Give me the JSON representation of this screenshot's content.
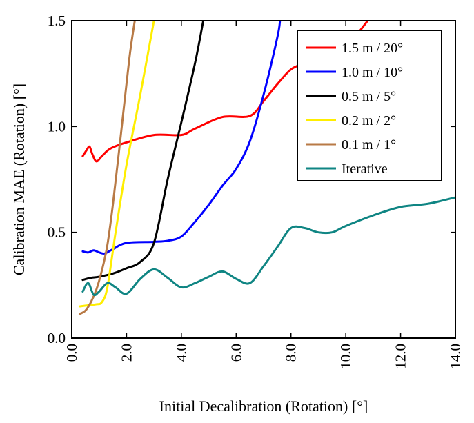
{
  "chart_data": {
    "type": "line",
    "title": "",
    "xlabel": "Initial Decalibration (Rotation) [°]",
    "ylabel": "Calibration MAE (Rotation) [°]",
    "xlim": [
      0,
      14
    ],
    "ylim": [
      0,
      1.5
    ],
    "xticks": [
      "0.0",
      "2.0",
      "4.0",
      "6.0",
      "8.0",
      "10.0",
      "12.0",
      "14.0"
    ],
    "yticks": [
      "0.0",
      "0.5",
      "1.0",
      "1.5"
    ],
    "grid": false,
    "legend_position": "top-right",
    "series": [
      {
        "name": "1.5 m / 20°",
        "color": "#ff0000",
        "x": [
          0.4,
          0.55,
          0.65,
          0.75,
          0.9,
          1.1,
          1.4,
          2.0,
          3.0,
          4.0,
          4.5,
          5.5,
          6.5,
          7.0,
          7.5,
          8.0,
          8.5,
          9.0,
          9.5,
          10.0,
          10.5,
          10.8
        ],
        "y": [
          0.86,
          0.89,
          0.905,
          0.87,
          0.835,
          0.86,
          0.895,
          0.925,
          0.96,
          0.96,
          0.99,
          1.045,
          1.05,
          1.12,
          1.2,
          1.27,
          1.3,
          1.33,
          1.36,
          1.37,
          1.45,
          1.5
        ]
      },
      {
        "name": "1.0 m / 10°",
        "color": "#0000ff",
        "x": [
          0.4,
          0.6,
          0.8,
          1.0,
          1.2,
          1.5,
          2.0,
          3.0,
          3.5,
          4.0,
          4.5,
          5.0,
          5.5,
          6.0,
          6.5,
          7.0,
          7.5,
          7.6
        ],
        "y": [
          0.41,
          0.405,
          0.415,
          0.405,
          0.4,
          0.42,
          0.45,
          0.455,
          0.46,
          0.48,
          0.55,
          0.63,
          0.72,
          0.8,
          0.93,
          1.15,
          1.42,
          1.5
        ]
      },
      {
        "name": "0.5 m / 5°",
        "color": "#000000",
        "x": [
          0.4,
          0.7,
          1.0,
          1.5,
          2.0,
          2.5,
          3.0,
          3.5,
          4.0,
          4.5,
          4.8
        ],
        "y": [
          0.275,
          0.285,
          0.29,
          0.305,
          0.33,
          0.36,
          0.45,
          0.75,
          1.02,
          1.3,
          1.5
        ]
      },
      {
        "name": "0.2 m / 2°",
        "color": "#ffee00",
        "x": [
          0.3,
          0.6,
          0.9,
          1.1,
          1.3,
          1.6,
          2.0,
          2.5,
          3.0
        ],
        "y": [
          0.15,
          0.155,
          0.16,
          0.17,
          0.24,
          0.5,
          0.82,
          1.15,
          1.5
        ]
      },
      {
        "name": "0.1 m / 1°",
        "color": "#b87a46",
        "x": [
          0.3,
          0.5,
          0.7,
          0.9,
          1.1,
          1.3,
          1.5,
          1.8,
          2.1,
          2.3
        ],
        "y": [
          0.115,
          0.13,
          0.17,
          0.23,
          0.32,
          0.44,
          0.63,
          0.97,
          1.32,
          1.5
        ]
      },
      {
        "name": "Iterative",
        "color": "#0f8583",
        "x": [
          0.4,
          0.6,
          0.8,
          1.0,
          1.3,
          1.6,
          2.0,
          2.5,
          3.0,
          3.5,
          4.0,
          4.5,
          5.0,
          5.5,
          6.0,
          6.5,
          7.0,
          7.5,
          8.0,
          8.5,
          9.0,
          9.5,
          10.0,
          11.0,
          12.0,
          13.0,
          14.0
        ],
        "y": [
          0.22,
          0.26,
          0.205,
          0.22,
          0.26,
          0.24,
          0.21,
          0.28,
          0.325,
          0.285,
          0.24,
          0.26,
          0.29,
          0.315,
          0.28,
          0.26,
          0.34,
          0.43,
          0.52,
          0.52,
          0.5,
          0.5,
          0.53,
          0.58,
          0.62,
          0.635,
          0.665
        ]
      }
    ]
  }
}
